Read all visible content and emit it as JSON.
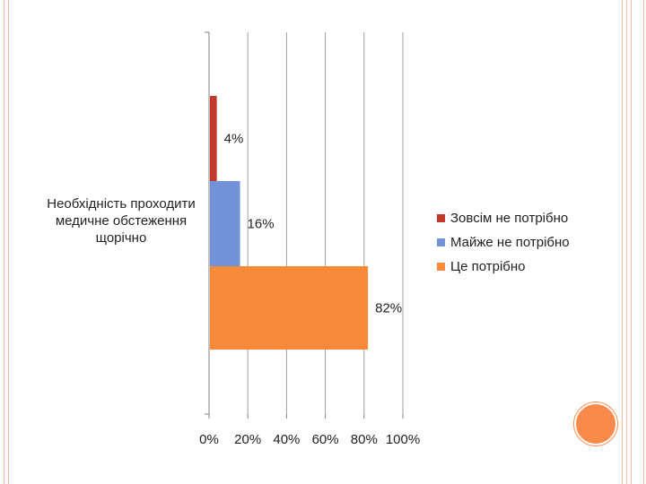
{
  "chart_data": {
    "type": "bar",
    "orientation": "horizontal",
    "categories": [
      "Необхідність проходити медичне обстеження щорічно"
    ],
    "series": [
      {
        "name": "Зовсім не потрібно",
        "values": [
          4
        ],
        "color": "#c0392b",
        "label": "4%"
      },
      {
        "name": "Майже не потрібно",
        "values": [
          16
        ],
        "color": "#7393d9",
        "label": "16%"
      },
      {
        "name": "Це потрібно",
        "values": [
          82
        ],
        "color": "#f98a3a",
        "label": "82%"
      }
    ],
    "xlim": [
      0,
      100
    ],
    "xticks": [
      "0%",
      "20%",
      "40%",
      "60%",
      "80%",
      "100%"
    ],
    "grid": true,
    "legend_position": "right"
  },
  "decor": {
    "frame_color": "#f3b9a3",
    "circle_color": "#f98a4a"
  }
}
